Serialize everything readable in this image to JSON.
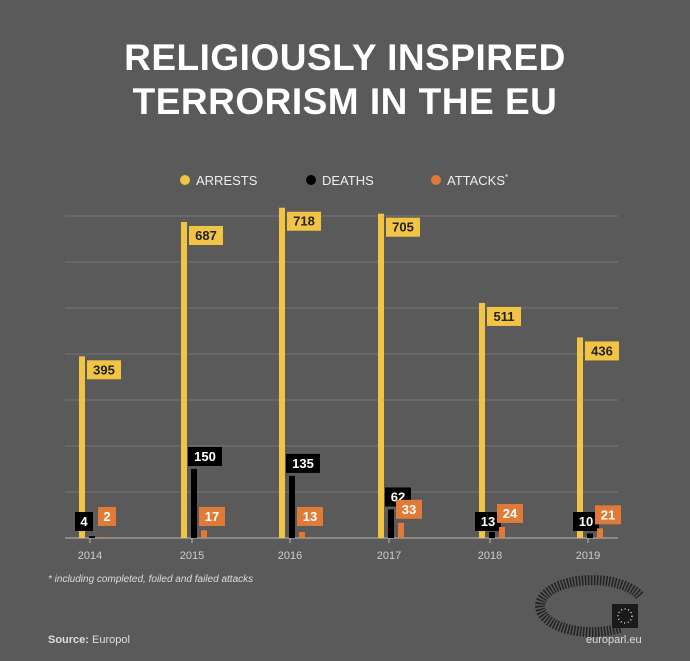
{
  "chart_data": {
    "type": "bar",
    "title_lines": [
      "RELIGIOUSLY INSPIRED",
      "TERRORISM IN THE EU"
    ],
    "categories": [
      "2014",
      "2015",
      "2016",
      "2017",
      "2018",
      "2019"
    ],
    "series": [
      {
        "name": "ARRESTS",
        "color": "#f2c443",
        "values": [
          395,
          687,
          718,
          705,
          511,
          436
        ]
      },
      {
        "name": "DEATHS",
        "color": "#000000",
        "values": [
          4,
          150,
          135,
          62,
          13,
          10
        ]
      },
      {
        "name": "ATTACKS",
        "marker": "*",
        "color": "#e07a36",
        "values": [
          2,
          17,
          13,
          33,
          24,
          21
        ]
      }
    ],
    "ylim": [
      0,
      700
    ],
    "grid": true,
    "legend": "top-center",
    "footnote": "* including completed, foiled and failed attacks"
  },
  "footer": {
    "source_label": "Source:",
    "source": "Europol",
    "site": "europarl.eu"
  }
}
